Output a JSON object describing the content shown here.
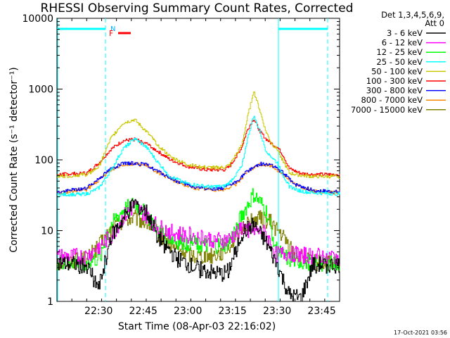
{
  "chart_data": {
    "type": "line",
    "title": "RHESSI Observing Summary Count Rates, Corrected",
    "xlabel": "Start Time (08-Apr-03 22:16:02)",
    "ylabel": "Corrected Count Rate (s⁻¹ detector⁻¹)",
    "y_scale": "log",
    "ylim": [
      1,
      10000
    ],
    "xlim_minutes": [
      0,
      95
    ],
    "x_ticks": [
      {
        "minutes": 14,
        "label": "22:30"
      },
      {
        "minutes": 29,
        "label": "22:45"
      },
      {
        "minutes": 44,
        "label": "23:00"
      },
      {
        "minutes": 59,
        "label": "23:15"
      },
      {
        "minutes": 74,
        "label": "23:30"
      },
      {
        "minutes": 89,
        "label": "23:45"
      }
    ],
    "y_ticks": [
      {
        "value": 1,
        "label": "1"
      },
      {
        "value": 10,
        "label": "10"
      },
      {
        "value": 100,
        "label": "100"
      },
      {
        "value": 1000,
        "label": "1000"
      },
      {
        "value": 10000,
        "label": "10000"
      }
    ],
    "legend_header": [
      "Det 1,3,4,5,6,9,",
      "Att 0"
    ],
    "markers": {
      "night_label": "N",
      "flare_label": "F"
    },
    "timestamp": "17-Oct-2021 03:56",
    "series": [
      {
        "name": "3 - 6 keV",
        "color": "#000000",
        "t": [
          0,
          10,
          14,
          18,
          22,
          26,
          30,
          34,
          40,
          46,
          52,
          56,
          58,
          62,
          66,
          70,
          74,
          78,
          82,
          86,
          95
        ],
        "v": [
          3.4,
          3.2,
          1.5,
          8,
          14,
          25,
          18,
          8,
          4,
          3,
          2.5,
          2.4,
          3,
          9,
          12,
          7,
          3.2,
          1.2,
          1.1,
          3.3,
          3.2
        ]
      },
      {
        "name": "6 - 12 keV",
        "color": "#ff00ff",
        "t": [
          0,
          10,
          14,
          18,
          22,
          26,
          30,
          34,
          40,
          46,
          52,
          56,
          58,
          62,
          66,
          70,
          74,
          78,
          82,
          86,
          95
        ],
        "v": [
          4.2,
          4.3,
          6,
          8,
          15,
          22,
          16,
          11,
          9,
          8.5,
          7.5,
          7.2,
          7.5,
          11,
          10,
          9,
          4.5,
          4.8,
          4.5,
          4.3,
          4.3
        ]
      },
      {
        "name": "12 - 25 keV",
        "color": "#00ff00",
        "t": [
          0,
          10,
          14,
          18,
          22,
          26,
          30,
          34,
          40,
          46,
          52,
          56,
          58,
          62,
          66,
          70,
          74,
          78,
          82,
          86,
          95
        ],
        "v": [
          3.6,
          3.6,
          4,
          12,
          19,
          24,
          17,
          10,
          7,
          6.5,
          6,
          6.3,
          7,
          16,
          32,
          20,
          5,
          3.8,
          3.6,
          3.5,
          3.4
        ]
      },
      {
        "name": "25 - 50 keV",
        "color": "#00ffff",
        "t": [
          0,
          10,
          14,
          18,
          22,
          26,
          30,
          34,
          38,
          44,
          50,
          56,
          58,
          62,
          64,
          66,
          68,
          70,
          72,
          74,
          76,
          78,
          82,
          86,
          95
        ],
        "v": [
          32,
          33,
          40,
          70,
          140,
          200,
          150,
          90,
          58,
          46,
          42,
          42,
          48,
          80,
          200,
          420,
          260,
          140,
          110,
          90,
          60,
          42,
          36,
          34,
          33
        ]
      },
      {
        "name": "50 - 100 keV",
        "color": "#c8c800",
        "t": [
          0,
          10,
          14,
          18,
          22,
          26,
          30,
          34,
          38,
          44,
          50,
          56,
          58,
          62,
          64,
          66,
          68,
          70,
          72,
          74,
          76,
          78,
          82,
          86,
          95
        ],
        "v": [
          58,
          62,
          80,
          200,
          330,
          370,
          250,
          160,
          110,
          85,
          78,
          78,
          85,
          160,
          400,
          950,
          520,
          260,
          170,
          140,
          95,
          65,
          60,
          58,
          58
        ]
      },
      {
        "name": "100 - 300 keV",
        "color": "#ff0000",
        "t": [
          0,
          10,
          14,
          18,
          22,
          26,
          30,
          34,
          38,
          44,
          50,
          56,
          58,
          62,
          64,
          66,
          68,
          70,
          72,
          74,
          76,
          78,
          82,
          86,
          95
        ],
        "v": [
          62,
          65,
          90,
          140,
          185,
          195,
          170,
          130,
          100,
          80,
          72,
          72,
          80,
          150,
          270,
          380,
          260,
          200,
          170,
          150,
          115,
          75,
          64,
          62,
          62
        ]
      },
      {
        "name": "300 - 800 keV",
        "color": "#0000ff",
        "t": [
          0,
          10,
          14,
          18,
          22,
          26,
          30,
          34,
          40,
          46,
          52,
          56,
          60,
          64,
          68,
          72,
          76,
          80,
          86,
          95
        ],
        "v": [
          35,
          40,
          55,
          75,
          88,
          90,
          85,
          68,
          50,
          41,
          39,
          40,
          48,
          70,
          88,
          85,
          65,
          45,
          37,
          35
        ]
      },
      {
        "name": "800 - 7000 keV",
        "color": "#ff8800",
        "t": [
          0,
          10,
          14,
          18,
          22,
          26,
          30,
          34,
          40,
          46,
          52,
          56,
          60,
          64,
          68,
          72,
          76,
          80,
          86,
          95
        ],
        "v": [
          34,
          38,
          52,
          72,
          86,
          88,
          83,
          66,
          49,
          40,
          38,
          38,
          45,
          68,
          86,
          83,
          63,
          44,
          36,
          34
        ]
      },
      {
        "name": "7000 - 15000 keV",
        "color": "#808000",
        "t": [
          0,
          10,
          14,
          18,
          22,
          26,
          30,
          34,
          40,
          46,
          52,
          56,
          60,
          64,
          68,
          72,
          76,
          80,
          86,
          95
        ],
        "v": [
          3.5,
          4,
          6,
          10,
          14,
          15,
          13,
          9,
          5.5,
          4.5,
          4.5,
          5,
          8,
          13,
          15,
          13,
          8,
          4.5,
          3.5,
          3.3
        ]
      }
    ]
  }
}
